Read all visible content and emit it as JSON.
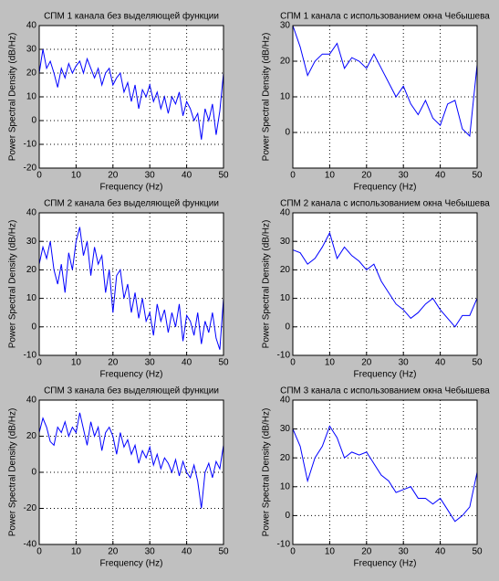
{
  "chart_data": [
    {
      "type": "line",
      "title": "СПМ 1 канала без выделяющей функции",
      "xlabel": "Frequency (Hz)",
      "ylabel": "Power Spectral Density (dB/Hz)",
      "x": [
        0,
        1,
        2,
        3,
        4,
        5,
        6,
        7,
        8,
        9,
        10,
        11,
        12,
        13,
        14,
        15,
        16,
        17,
        18,
        19,
        20,
        21,
        22,
        23,
        24,
        25,
        26,
        27,
        28,
        29,
        30,
        31,
        32,
        33,
        34,
        35,
        36,
        37,
        38,
        39,
        40,
        41,
        42,
        43,
        44,
        45,
        46,
        47,
        48,
        49,
        50
      ],
      "values": [
        20,
        30,
        22,
        25,
        20,
        14,
        22,
        18,
        24,
        20,
        23,
        25,
        20,
        26,
        22,
        18,
        22,
        15,
        20,
        22,
        15,
        18,
        20,
        12,
        16,
        8,
        15,
        5,
        13,
        10,
        15,
        8,
        12,
        5,
        10,
        3,
        10,
        7,
        12,
        2,
        8,
        5,
        0,
        3,
        -8,
        5,
        0,
        7,
        -6,
        4,
        20
      ],
      "color": "#0000ff",
      "xlim": [
        0,
        50
      ],
      "ylim": [
        -20,
        40
      ],
      "xticks": [
        0,
        10,
        20,
        30,
        40,
        50
      ],
      "yticks": [
        -20,
        -10,
        0,
        10,
        20,
        30,
        40
      ],
      "grid": true
    },
    {
      "type": "line",
      "title": "СПМ 1 канала с использованием окна Чебышева",
      "xlabel": "Frequency (Hz)",
      "ylabel": "Power Spectral Density (dB/Hz)",
      "x": [
        0,
        2,
        4,
        6,
        8,
        10,
        12,
        14,
        16,
        18,
        20,
        22,
        24,
        26,
        28,
        30,
        32,
        34,
        36,
        38,
        40,
        42,
        44,
        46,
        48,
        50
      ],
      "values": [
        30,
        24,
        16,
        20,
        22,
        22,
        25,
        18,
        21,
        20,
        18,
        22,
        18,
        14,
        10,
        13,
        8,
        5,
        9,
        4,
        2,
        8,
        9,
        1,
        -1,
        19
      ],
      "color": "#0000ff",
      "xlim": [
        0,
        50
      ],
      "ylim": [
        -10,
        30
      ],
      "xticks": [
        0,
        10,
        20,
        30,
        40,
        50
      ],
      "yticks": [
        0,
        10,
        20,
        30
      ],
      "grid": true
    },
    {
      "type": "line",
      "title": "СПМ 2 канала без выделяющей функции",
      "xlabel": "Frequency (Hz)",
      "ylabel": "Power Spectral Density (dB/Hz)",
      "x": [
        0,
        1,
        2,
        3,
        4,
        5,
        6,
        7,
        8,
        9,
        10,
        11,
        12,
        13,
        14,
        15,
        16,
        17,
        18,
        19,
        20,
        21,
        22,
        23,
        24,
        25,
        26,
        27,
        28,
        29,
        30,
        31,
        32,
        33,
        34,
        35,
        36,
        37,
        38,
        39,
        40,
        41,
        42,
        43,
        44,
        45,
        46,
        47,
        48,
        49,
        50
      ],
      "values": [
        22,
        28,
        24,
        30,
        20,
        15,
        22,
        12,
        26,
        20,
        30,
        35,
        25,
        30,
        18,
        28,
        22,
        25,
        12,
        20,
        5,
        18,
        20,
        10,
        15,
        5,
        12,
        3,
        10,
        2,
        5,
        -3,
        8,
        2,
        6,
        -2,
        5,
        0,
        8,
        -5,
        4,
        2,
        -3,
        5,
        -6,
        2,
        -2,
        5,
        -4,
        -8,
        10
      ],
      "color": "#0000ff",
      "xlim": [
        0,
        50
      ],
      "ylim": [
        -10,
        40
      ],
      "xticks": [
        0,
        10,
        20,
        30,
        40,
        50
      ],
      "yticks": [
        -10,
        0,
        10,
        20,
        30,
        40
      ],
      "grid": true
    },
    {
      "type": "line",
      "title": "СПМ 2 канала с использованием окна Чебышева",
      "xlabel": "Frequency (Hz)",
      "ylabel": "Power Spectral Density (dB/Hz)",
      "x": [
        0,
        2,
        4,
        6,
        8,
        10,
        12,
        14,
        16,
        18,
        20,
        22,
        24,
        26,
        28,
        30,
        32,
        34,
        36,
        38,
        40,
        42,
        44,
        46,
        48,
        50
      ],
      "values": [
        27,
        26,
        22,
        24,
        28,
        33,
        24,
        28,
        25,
        23,
        20,
        22,
        16,
        12,
        8,
        6,
        3,
        5,
        8,
        10,
        6,
        3,
        0,
        4,
        4,
        10
      ],
      "color": "#0000ff",
      "xlim": [
        0,
        50
      ],
      "ylim": [
        -10,
        40
      ],
      "xticks": [
        0,
        10,
        20,
        30,
        40,
        50
      ],
      "yticks": [
        -10,
        0,
        10,
        20,
        30,
        40
      ],
      "grid": true
    },
    {
      "type": "line",
      "title": "СПМ 3 канала без выделяющей функции",
      "xlabel": "Frequency (Hz)",
      "ylabel": "Power Spectral Density (dB/Hz)",
      "x": [
        0,
        1,
        2,
        3,
        4,
        5,
        6,
        7,
        8,
        9,
        10,
        11,
        12,
        13,
        14,
        15,
        16,
        17,
        18,
        19,
        20,
        21,
        22,
        23,
        24,
        25,
        26,
        27,
        28,
        29,
        30,
        31,
        32,
        33,
        34,
        35,
        36,
        37,
        38,
        39,
        40,
        41,
        42,
        43,
        44,
        45,
        46,
        47,
        48,
        49,
        50
      ],
      "values": [
        22,
        30,
        25,
        17,
        15,
        25,
        22,
        28,
        20,
        25,
        22,
        33,
        24,
        15,
        28,
        20,
        25,
        12,
        22,
        25,
        20,
        10,
        22,
        14,
        18,
        10,
        15,
        5,
        12,
        8,
        14,
        4,
        10,
        2,
        8,
        5,
        0,
        7,
        -2,
        6,
        0,
        -3,
        4,
        -5,
        -20,
        0,
        5,
        -3,
        6,
        2,
        15
      ],
      "color": "#0000ff",
      "xlim": [
        0,
        50
      ],
      "ylim": [
        -40,
        40
      ],
      "xticks": [
        0,
        10,
        20,
        30,
        40,
        50
      ],
      "yticks": [
        -40,
        -20,
        0,
        20,
        40
      ],
      "grid": true
    },
    {
      "type": "line",
      "title": "СПМ 3 канала с использованием окна Чебышева",
      "xlabel": "Frequency (Hz)",
      "ylabel": "Power Spectral Density (dB/Hz)",
      "x": [
        0,
        2,
        4,
        6,
        8,
        10,
        12,
        14,
        16,
        18,
        20,
        22,
        24,
        26,
        28,
        30,
        32,
        34,
        36,
        38,
        40,
        42,
        44,
        46,
        48,
        50
      ],
      "values": [
        30,
        24,
        12,
        20,
        24,
        31,
        27,
        20,
        22,
        21,
        22,
        18,
        14,
        12,
        8,
        9,
        10,
        6,
        6,
        4,
        6,
        2,
        -2,
        0,
        3,
        15
      ],
      "color": "#0000ff",
      "xlim": [
        0,
        50
      ],
      "ylim": [
        -10,
        40
      ],
      "xticks": [
        0,
        10,
        20,
        30,
        40,
        50
      ],
      "yticks": [
        -10,
        0,
        10,
        20,
        30,
        40
      ],
      "grid": true
    }
  ]
}
